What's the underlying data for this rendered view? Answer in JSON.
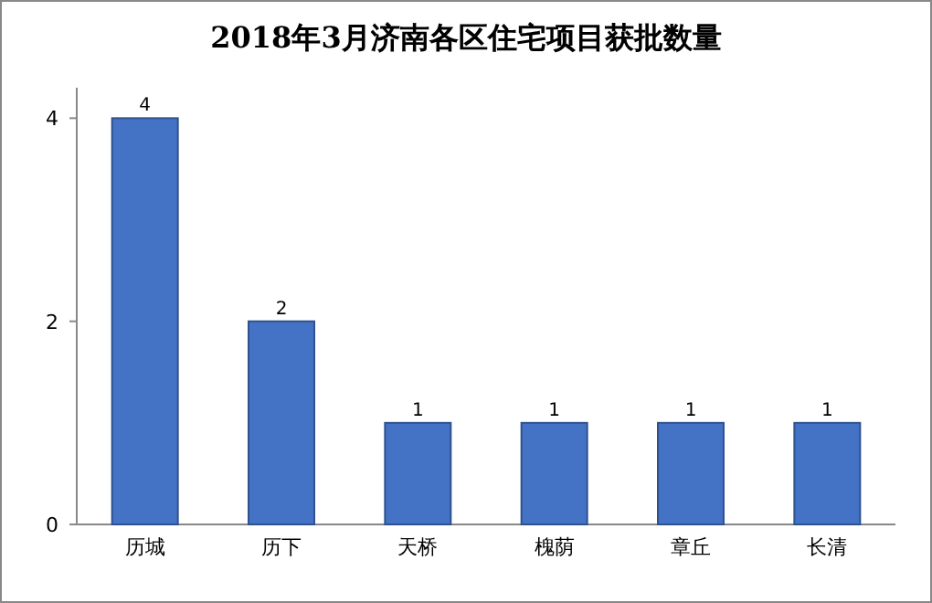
{
  "chart_data": {
    "type": "bar",
    "title": "2018年3月济南各区住宅项目获批数量",
    "categories": [
      "历城",
      "历下",
      "天桥",
      "槐荫",
      "章丘",
      "长清"
    ],
    "values": [
      4,
      2,
      1,
      1,
      1,
      1
    ],
    "color": "#4472c4",
    "ylim": [
      0,
      4.3
    ],
    "yticks": [
      0,
      2,
      4
    ],
    "data_labels": true
  }
}
